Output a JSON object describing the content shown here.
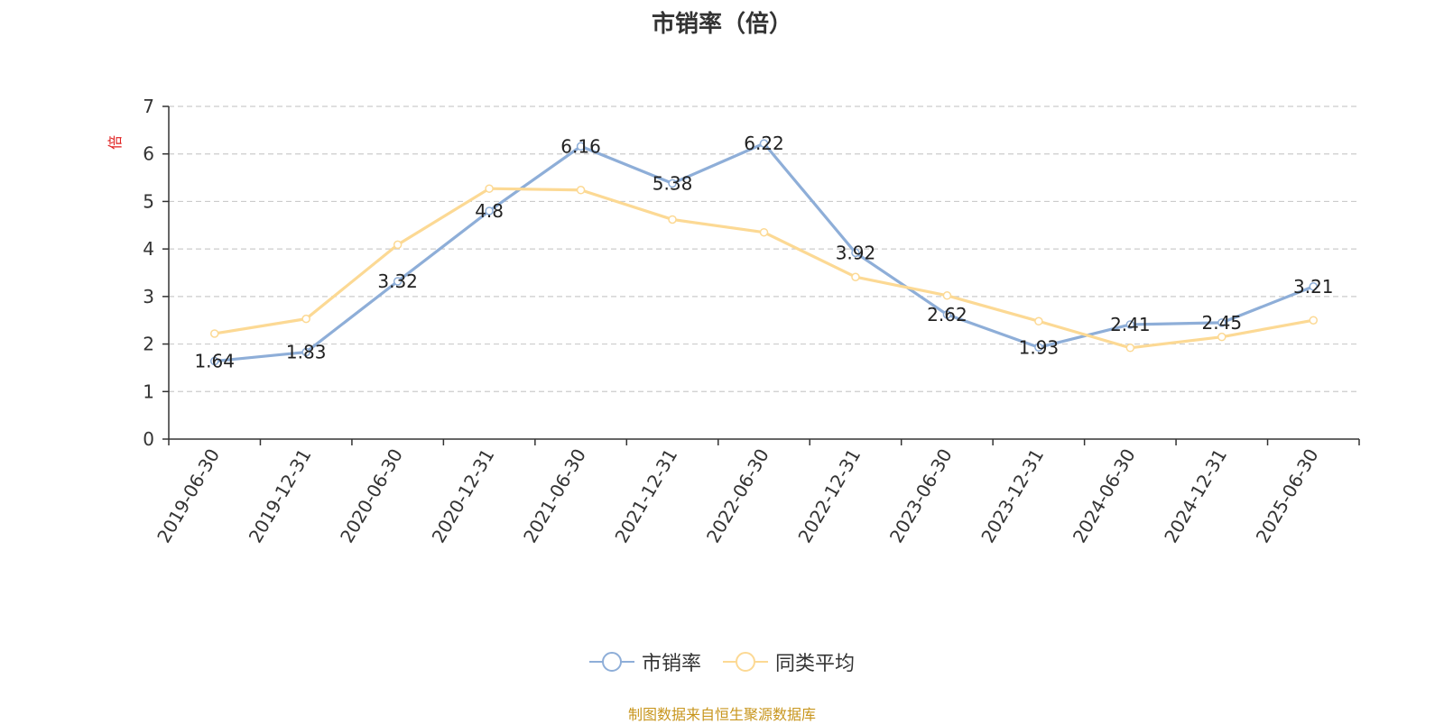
{
  "chart_data": {
    "type": "line",
    "title": "市销率（倍）",
    "ylabel": "倍",
    "xlabel": "",
    "ylim": [
      0,
      7
    ],
    "yticks": [
      0,
      1,
      2,
      3,
      4,
      5,
      6,
      7
    ],
    "grid": true,
    "legend_position": "bottom-center",
    "categories": [
      "2019-06-30",
      "2019-12-31",
      "2020-06-30",
      "2020-12-31",
      "2021-06-30",
      "2021-12-31",
      "2022-06-30",
      "2022-12-31",
      "2023-06-30",
      "2023-12-31",
      "2024-06-30",
      "2024-12-31",
      "2025-06-30"
    ],
    "series": [
      {
        "name": "市销率",
        "color": "#8eaed8",
        "values": [
          1.64,
          1.83,
          3.32,
          4.8,
          6.16,
          5.38,
          6.22,
          3.92,
          2.62,
          1.93,
          2.41,
          2.45,
          3.21
        ],
        "labels": [
          "1.64",
          "1.83",
          "3.32",
          "4.8",
          "6.16",
          "5.38",
          "6.22",
          "3.92",
          "2.62",
          "1.93",
          "2.41",
          "2.45",
          "3.21"
        ]
      },
      {
        "name": "同类平均",
        "color": "#fcd994",
        "values": [
          2.22,
          2.53,
          4.09,
          5.27,
          5.24,
          4.62,
          4.35,
          3.41,
          3.02,
          2.48,
          1.92,
          2.15,
          2.5
        ]
      }
    ]
  },
  "source": "制图数据来自恒生聚源数据库"
}
